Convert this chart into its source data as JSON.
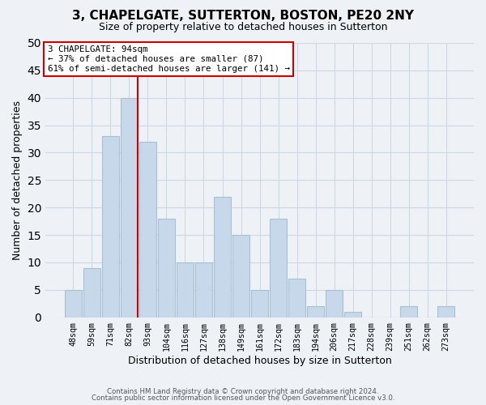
{
  "title": "3, CHAPELGATE, SUTTERTON, BOSTON, PE20 2NY",
  "subtitle": "Size of property relative to detached houses in Sutterton",
  "xlabel": "Distribution of detached houses by size in Sutterton",
  "ylabel": "Number of detached properties",
  "bar_labels": [
    "48sqm",
    "59sqm",
    "71sqm",
    "82sqm",
    "93sqm",
    "104sqm",
    "116sqm",
    "127sqm",
    "138sqm",
    "149sqm",
    "161sqm",
    "172sqm",
    "183sqm",
    "194sqm",
    "206sqm",
    "217sqm",
    "228sqm",
    "239sqm",
    "251sqm",
    "262sqm",
    "273sqm"
  ],
  "bar_values": [
    5,
    9,
    33,
    40,
    32,
    18,
    10,
    10,
    22,
    15,
    5,
    18,
    7,
    2,
    5,
    1,
    0,
    0,
    2,
    0,
    2
  ],
  "bar_color": "#c8d8eb",
  "bar_edge_color": "#a8c0d4",
  "marker_line_color": "#cc0000",
  "annotation_title": "3 CHAPELGATE: 94sqm",
  "annotation_line1": "← 37% of detached houses are smaller (87)",
  "annotation_line2": "61% of semi-detached houses are larger (141) →",
  "annotation_box_color": "#ffffff",
  "annotation_box_edge": "#cc0000",
  "ylim": [
    0,
    50
  ],
  "yticks": [
    0,
    5,
    10,
    15,
    20,
    25,
    30,
    35,
    40,
    45,
    50
  ],
  "footer1": "Contains HM Land Registry data © Crown copyright and database right 2024.",
  "footer2": "Contains public sector information licensed under the Open Government Licence v3.0.",
  "grid_color": "#ccd8e4",
  "background_color": "#eef2f7",
  "title_fontsize": 11,
  "subtitle_fontsize": 9,
  "bar_width": 0.9
}
